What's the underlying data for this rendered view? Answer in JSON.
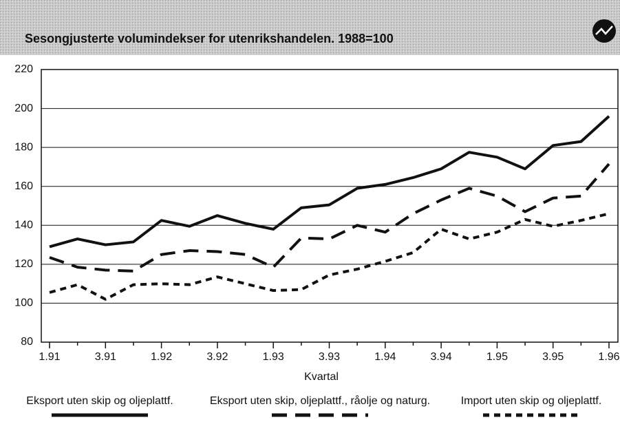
{
  "chart_data": {
    "type": "line",
    "title": "Sesongjusterte volumindekser for utenrikshandelen. 1988=100",
    "x_label": "Kvartal",
    "categories": [
      "1.91",
      null,
      "3.91",
      null,
      "1.92",
      null,
      "3.92",
      null,
      "1.93",
      null,
      "3.93",
      null,
      "1.94",
      null,
      "3.94",
      null,
      "1.95",
      null,
      "3.95",
      null,
      "1.96"
    ],
    "series": [
      {
        "name": "Eksport uten skip og oljeplattf.",
        "color": "#111111",
        "line_style": "solid",
        "values": [
          129,
          133,
          130,
          131.5,
          142.5,
          139.5,
          145,
          141,
          138,
          149,
          150.5,
          159,
          161,
          164.5,
          169,
          177.5,
          175,
          169,
          181,
          183,
          196
        ]
      },
      {
        "name": "Eksport uten skip, oljeplattf., råolje og naturg.",
        "color": "#111111",
        "line_style": "long-dash",
        "values": [
          123.5,
          118.5,
          117,
          116.5,
          125,
          127,
          126.5,
          125,
          118.5,
          133.5,
          133,
          140,
          136.5,
          146,
          153,
          159,
          155,
          147,
          154,
          155,
          171.5
        ]
      },
      {
        "name": "Import uten skip og oljeplattf.",
        "color": "#111111",
        "line_style": "short-dash",
        "values": [
          105.5,
          109.5,
          102,
          109.5,
          110,
          109.5,
          113.5,
          110,
          106.5,
          107,
          114.5,
          117.5,
          121.5,
          126,
          138,
          133,
          136.5,
          143,
          139.5,
          142.5,
          146
        ]
      }
    ],
    "ylim": [
      80,
      220
    ],
    "yticks": [
      80,
      100,
      120,
      140,
      160,
      180,
      200,
      220
    ],
    "grid": true
  }
}
